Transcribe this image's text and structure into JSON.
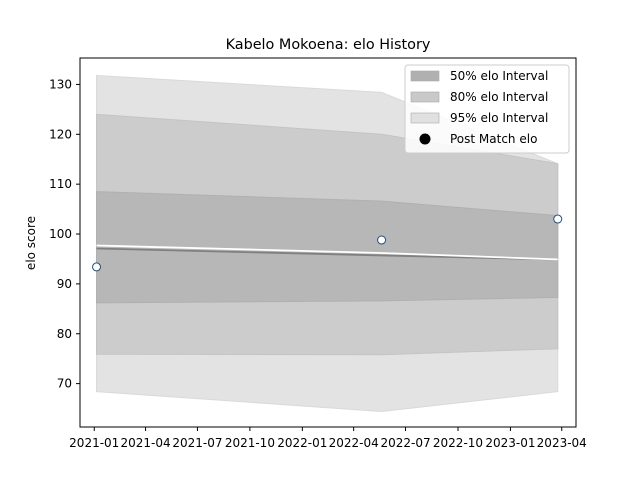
{
  "chart_data": {
    "type": "area",
    "title": "Kabelo Mokoena: elo History",
    "xlabel": "",
    "ylabel": "elo score",
    "x_dates": [
      "2021-01-05",
      "2022-05-20",
      "2023-03-25"
    ],
    "xlim": [
      "2020-12-07",
      "2023-04-26"
    ],
    "ylim": [
      61.3,
      135.3
    ],
    "x_ticks": [
      {
        "date": "2021-01-01",
        "label": "2021-01"
      },
      {
        "date": "2021-04-01",
        "label": "2021-04"
      },
      {
        "date": "2021-07-01",
        "label": "2021-07"
      },
      {
        "date": "2021-10-01",
        "label": "2021-10"
      },
      {
        "date": "2022-01-01",
        "label": "2022-01"
      },
      {
        "date": "2022-04-01",
        "label": "2022-04"
      },
      {
        "date": "2022-07-01",
        "label": "2022-07"
      },
      {
        "date": "2022-10-01",
        "label": "2022-10"
      },
      {
        "date": "2023-01-01",
        "label": "2023-01"
      },
      {
        "date": "2023-04-01",
        "label": "2023-04"
      }
    ],
    "y_ticks": [
      70,
      80,
      90,
      100,
      110,
      120,
      130
    ],
    "bands": [
      {
        "name": "95% elo Interval",
        "color": "#d9d9d9",
        "opacity": 0.75,
        "lower": [
          68.4,
          64.4,
          68.4
        ],
        "upper": [
          131.8,
          128.4,
          114.1
        ]
      },
      {
        "name": "80% elo Interval",
        "color": "#c4c4c4",
        "opacity": 0.75,
        "lower": [
          75.9,
          75.8,
          77.0
        ],
        "upper": [
          124.0,
          120.0,
          114.1
        ]
      },
      {
        "name": "50% elo Interval",
        "color": "#b0b0b0",
        "opacity": 0.75,
        "lower": [
          86.2,
          86.6,
          87.3
        ],
        "upper": [
          108.5,
          106.6,
          103.7
        ]
      }
    ],
    "series": [
      {
        "name": "",
        "color": "#808080",
        "values": [
          97.1,
          95.7,
          94.9
        ]
      },
      {
        "name": "",
        "color": "#ffffff",
        "values": [
          97.7,
          96.2,
          94.9
        ]
      }
    ],
    "points": {
      "name": "Post Match elo",
      "values": [
        93.4,
        98.8,
        103.0
      ],
      "fill": "#ffffff",
      "edge": "#1f4e79"
    },
    "legend": {
      "placement": "top-right",
      "entries": [
        {
          "label": "50% elo Interval",
          "color": "#b0b0b0",
          "kind": "patch"
        },
        {
          "label": "80% elo Interval",
          "color": "#c9c9c9",
          "kind": "patch"
        },
        {
          "label": "95% elo Interval",
          "color": "#e0e0e0",
          "kind": "patch"
        },
        {
          "label": "Post Match elo",
          "color": "#000000",
          "kind": "marker"
        }
      ]
    },
    "grid": false
  }
}
